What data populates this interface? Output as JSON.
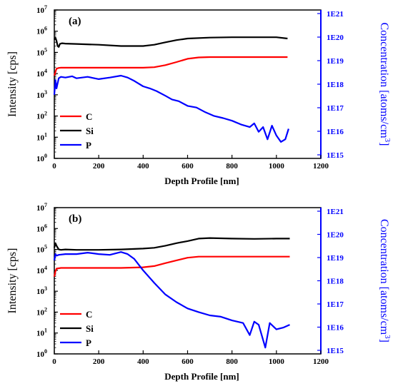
{
  "chart_data": [
    {
      "type": "line",
      "panel_label": "(a)",
      "xlabel": "Depth Profile [nm]",
      "ylabel_left": "Intensity [cps]",
      "ylabel_right": "Concentration [atoms/cm",
      "ylabel_right_sup": "3",
      "ylabel_right_close": "]",
      "xlim": [
        0,
        1200
      ],
      "x_ticks": [
        "0",
        "200",
        "400",
        "600",
        "800",
        "1000",
        "1200"
      ],
      "y_left_scale": "log",
      "ylim_left_exp": [
        0,
        7
      ],
      "y_left_ticks": [
        {
          "base": "10",
          "exp": "0"
        },
        {
          "base": "10",
          "exp": "1"
        },
        {
          "base": "10",
          "exp": "2"
        },
        {
          "base": "10",
          "exp": "3"
        },
        {
          "base": "10",
          "exp": "4"
        },
        {
          "base": "10",
          "exp": "5"
        },
        {
          "base": "10",
          "exp": "6"
        },
        {
          "base": "10",
          "exp": "7"
        }
      ],
      "y_right_scale": "log",
      "y_right_ticks": [
        "1E15",
        "1E16",
        "1E17",
        "1E18",
        "1E19",
        "1E20",
        "1E21"
      ],
      "legend_position": "bottom-left",
      "series": [
        {
          "name": "C",
          "color": "#ff0000",
          "x": [
            0,
            5,
            10,
            20,
            30,
            50,
            100,
            200,
            300,
            400,
            450,
            500,
            550,
            600,
            650,
            700,
            800,
            900,
            1000,
            1050
          ],
          "y": [
            8000,
            12000,
            17000,
            18500,
            19000,
            19000,
            19000,
            19000,
            19000,
            19000,
            20000,
            25000,
            35000,
            50000,
            58000,
            60000,
            60000,
            60000,
            60000,
            60000
          ]
        },
        {
          "name": "Si",
          "color": "#000000",
          "x": [
            0,
            5,
            10,
            15,
            20,
            25,
            35,
            50,
            100,
            200,
            300,
            400,
            450,
            500,
            550,
            600,
            700,
            800,
            900,
            1000,
            1050
          ],
          "y": [
            400000,
            500000,
            350000,
            200000,
            180000,
            250000,
            270000,
            260000,
            250000,
            230000,
            200000,
            200000,
            230000,
            300000,
            380000,
            450000,
            500000,
            520000,
            520000,
            520000,
            450000
          ]
        },
        {
          "name": "P",
          "color": "#0000ff",
          "x": [
            0,
            5,
            10,
            20,
            30,
            50,
            80,
            100,
            150,
            200,
            250,
            300,
            330,
            360,
            400,
            430,
            460,
            500,
            530,
            560,
            600,
            640,
            680,
            720,
            760,
            800,
            840,
            880,
            900,
            920,
            940,
            960,
            980,
            1000,
            1020,
            1040,
            1055
          ],
          "y": [
            1000,
            5000,
            2000,
            6000,
            7000,
            6500,
            7500,
            6000,
            7000,
            5500,
            6500,
            8000,
            6500,
            4500,
            2500,
            2000,
            1500,
            900,
            600,
            500,
            300,
            250,
            150,
            100,
            80,
            60,
            40,
            30,
            45,
            18,
            30,
            8,
            35,
            12,
            6,
            8,
            25
          ]
        }
      ]
    },
    {
      "type": "line",
      "panel_label": "(b)",
      "xlabel": "Depth Profile [nm]",
      "ylabel_left": "Intensity [cps]",
      "ylabel_right": "Concentration [atoms/cm",
      "ylabel_right_sup": "3",
      "ylabel_right_close": "]",
      "xlim": [
        0,
        1200
      ],
      "x_ticks": [
        "0",
        "200",
        "400",
        "600",
        "800",
        "1000",
        "1200"
      ],
      "y_left_scale": "log",
      "ylim_left_exp": [
        0,
        7
      ],
      "y_left_ticks": [
        {
          "base": "10",
          "exp": "0"
        },
        {
          "base": "10",
          "exp": "1"
        },
        {
          "base": "10",
          "exp": "2"
        },
        {
          "base": "10",
          "exp": "3"
        },
        {
          "base": "10",
          "exp": "4"
        },
        {
          "base": "10",
          "exp": "5"
        },
        {
          "base": "10",
          "exp": "6"
        },
        {
          "base": "10",
          "exp": "7"
        }
      ],
      "y_right_scale": "log",
      "y_right_ticks": [
        "1E15",
        "1E16",
        "1E17",
        "1E18",
        "1E19",
        "1E20",
        "1E21"
      ],
      "legend_position": "bottom-left",
      "series": [
        {
          "name": "C",
          "color": "#ff0000",
          "x": [
            0,
            5,
            10,
            20,
            30,
            50,
            100,
            200,
            300,
            400,
            450,
            500,
            550,
            600,
            650,
            700,
            800,
            900,
            1000,
            1060
          ],
          "y": [
            5000,
            9000,
            12000,
            12500,
            13000,
            13000,
            13000,
            13000,
            13000,
            14000,
            16000,
            22000,
            30000,
            40000,
            45000,
            45000,
            45000,
            45000,
            45000,
            45000
          ]
        },
        {
          "name": "Si",
          "color": "#000000",
          "x": [
            0,
            5,
            10,
            20,
            30,
            50,
            100,
            200,
            300,
            400,
            450,
            500,
            550,
            600,
            650,
            700,
            800,
            900,
            1000,
            1060
          ],
          "y": [
            120000,
            200000,
            150000,
            100000,
            95000,
            100000,
            95000,
            95000,
            100000,
            110000,
            120000,
            150000,
            200000,
            250000,
            330000,
            350000,
            330000,
            320000,
            330000,
            330000
          ]
        },
        {
          "name": "P",
          "color": "#0000ff",
          "x": [
            0,
            5,
            10,
            20,
            50,
            100,
            150,
            200,
            250,
            300,
            330,
            360,
            400,
            450,
            500,
            550,
            600,
            650,
            700,
            750,
            800,
            850,
            880,
            900,
            920,
            950,
            970,
            1000,
            1030,
            1060
          ],
          "y": [
            30000,
            60000,
            50000,
            55000,
            60000,
            60000,
            70000,
            60000,
            55000,
            75000,
            60000,
            35000,
            10000,
            2500,
            700,
            300,
            150,
            100,
            70,
            60,
            40,
            30,
            8,
            35,
            25,
            2,
            30,
            15,
            18,
            25
          ]
        }
      ]
    }
  ]
}
